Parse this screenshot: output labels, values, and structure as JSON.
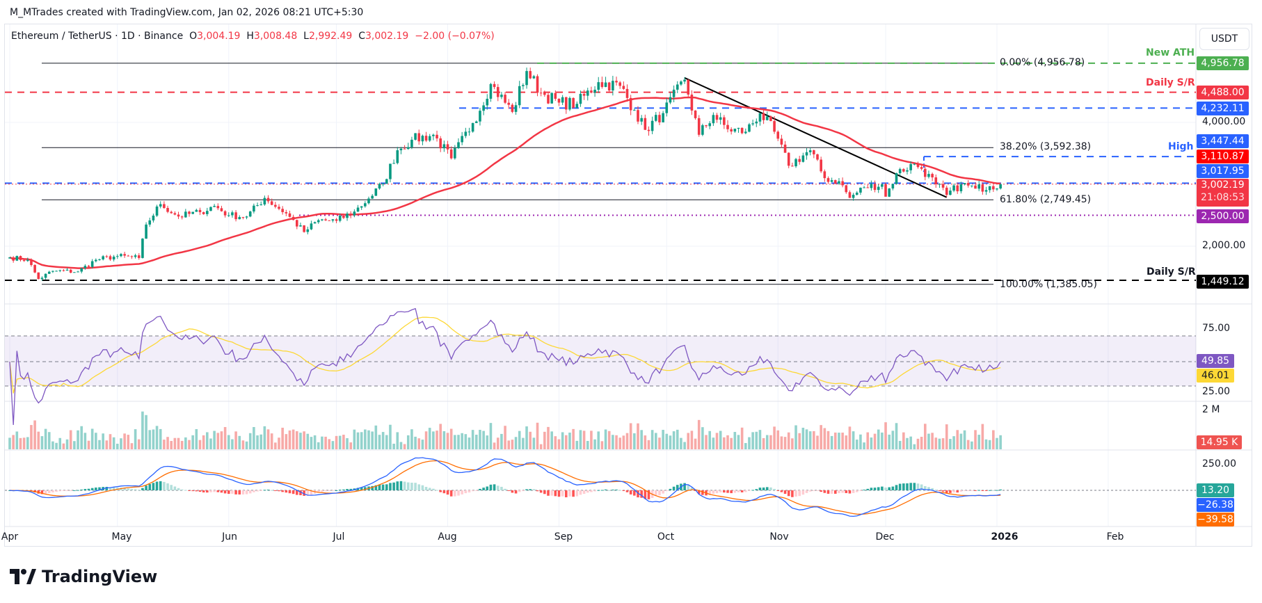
{
  "header": {
    "credit": "M_MTrades created with TradingView.com, Jan 02, 2026 08:21 UTC+5:30"
  },
  "legend": {
    "symbol": "Ethereum / TetherUS · 1D · Binance",
    "o_label": "O",
    "o": "3,004.19",
    "h_label": "H",
    "h": "3,008.48",
    "l_label": "L",
    "l": "2,992.49",
    "c_label": "C",
    "c": "3,002.19",
    "change": "−2.00 (−0.07%)"
  },
  "currency_button": "USDT",
  "annotations": {
    "new_ath": "New ATH",
    "daily_sr_top": "Daily S/R",
    "high": "High",
    "daily_sr_bottom": "Daily S/R",
    "fib_0": "0.00% (4,956.78)",
    "fib_382": "38.20% (3,592.38)",
    "fib_618": "61.80% (2,749.45)",
    "fib_100": "100.00% (1,385.05)"
  },
  "price_badges": {
    "ath": "4,956.78",
    "daily_sr": "4,488.00",
    "blue_upper": "4,232.11",
    "high": "3,447.44",
    "ma": "3,110.87",
    "blue_mid": "3,017.95",
    "last": "3,002.19",
    "countdown": "21:08:53",
    "purple": "2,500.00",
    "daily_sr_low": "1,449.12"
  },
  "price_axis": {
    "ticks": [
      "4,000.00",
      "2,000.00"
    ]
  },
  "rsi": {
    "ticks": [
      "75.00",
      "25.00"
    ],
    "value": "49.85",
    "ma_value": "46.01"
  },
  "volume": {
    "tick": "2 M",
    "value": "14.95 K"
  },
  "macd": {
    "tick": "250.00",
    "hist": "13.20",
    "macd": "−26.38",
    "signal": "−39.58"
  },
  "x_axis": {
    "labels": [
      "Apr",
      "May",
      "Jun",
      "Jul",
      "Aug",
      "Sep",
      "Oct",
      "Nov",
      "Dec",
      "2026",
      "Feb"
    ]
  },
  "footer": {
    "brand": "TradingView"
  },
  "colors": {
    "up": "#089981",
    "down": "#f23645",
    "ma": "#f23645",
    "ath": "#4caf50",
    "blue": "#2962ff",
    "purple": "#9c27b0",
    "rsi": "#7e57c2",
    "rsi_ma": "#fdd835",
    "macd": "#2962ff",
    "signal": "#ff6d00"
  },
  "chart_data": {
    "type": "candlestick",
    "title": "Ethereum / TetherUS · 1D · Binance",
    "y_scale": "linear",
    "ylim": [
      1250,
      5100
    ],
    "x_range": [
      "2025-04-01",
      "2026-02-28"
    ],
    "closes": [
      [
        "2025-04-01",
        1820
      ],
      [
        "2025-04-06",
        1780
      ],
      [
        "2025-04-09",
        1470
      ],
      [
        "2025-04-13",
        1600
      ],
      [
        "2025-04-20",
        1590
      ],
      [
        "2025-04-25",
        1780
      ],
      [
        "2025-05-01",
        1840
      ],
      [
        "2025-05-07",
        1810
      ],
      [
        "2025-05-09",
        2350
      ],
      [
        "2025-05-13",
        2680
      ],
      [
        "2025-05-18",
        2480
      ],
      [
        "2025-05-24",
        2550
      ],
      [
        "2025-05-28",
        2650
      ],
      [
        "2025-06-01",
        2500
      ],
      [
        "2025-06-06",
        2480
      ],
      [
        "2025-06-11",
        2780
      ],
      [
        "2025-06-17",
        2530
      ],
      [
        "2025-06-22",
        2230
      ],
      [
        "2025-06-26",
        2420
      ],
      [
        "2025-07-01",
        2410
      ],
      [
        "2025-07-06",
        2560
      ],
      [
        "2025-07-10",
        2770
      ],
      [
        "2025-07-14",
        3010
      ],
      [
        "2025-07-18",
        3550
      ],
      [
        "2025-07-22",
        3720
      ],
      [
        "2025-07-28",
        3800
      ],
      [
        "2025-08-02",
        3420
      ],
      [
        "2025-08-08",
        3990
      ],
      [
        "2025-08-13",
        4620
      ],
      [
        "2025-08-19",
        4170
      ],
      [
        "2025-08-23",
        4830
      ],
      [
        "2025-08-27",
        4480
      ],
      [
        "2025-09-01",
        4320
      ],
      [
        "2025-09-06",
        4300
      ],
      [
        "2025-09-12",
        4650
      ],
      [
        "2025-09-18",
        4590
      ],
      [
        "2025-09-22",
        4200
      ],
      [
        "2025-09-25",
        3880
      ],
      [
        "2025-09-30",
        4150
      ],
      [
        "2025-10-06",
        4690
      ],
      [
        "2025-10-10",
        3800
      ],
      [
        "2025-10-14",
        4120
      ],
      [
        "2025-10-18",
        3890
      ],
      [
        "2025-10-23",
        3850
      ],
      [
        "2025-10-27",
        4150
      ],
      [
        "2025-10-31",
        3850
      ],
      [
        "2025-11-04",
        3300
      ],
      [
        "2025-11-10",
        3550
      ],
      [
        "2025-11-14",
        3100
      ],
      [
        "2025-11-18",
        3050
      ],
      [
        "2025-11-21",
        2780
      ],
      [
        "2025-11-25",
        2950
      ],
      [
        "2025-11-30",
        3000
      ],
      [
        "2025-12-01",
        2800
      ],
      [
        "2025-12-04",
        3180
      ],
      [
        "2025-12-09",
        3330
      ],
      [
        "2025-12-11",
        3250
      ],
      [
        "2025-12-15",
        3000
      ],
      [
        "2025-12-18",
        2830
      ],
      [
        "2025-12-22",
        3000
      ],
      [
        "2025-12-26",
        2930
      ],
      [
        "2025-12-30",
        2970
      ],
      [
        "2026-01-02",
        3002
      ]
    ],
    "levels": [
      {
        "label": "New ATH",
        "value": 4956.78,
        "style": "dashed",
        "color": "#4caf50"
      },
      {
        "label": "Daily S/R",
        "value": 4488.0,
        "style": "dashed",
        "color": "#f23645"
      },
      {
        "value": 4232.11,
        "style": "dashed",
        "color": "#2962ff"
      },
      {
        "label": "High",
        "value": 3447.44,
        "style": "dashed",
        "color": "#2962ff"
      },
      {
        "value": 3017.95,
        "style": "dashed",
        "color": "#2962ff"
      },
      {
        "value": 2500.0,
        "style": "dotted",
        "color": "#9c27b0"
      },
      {
        "label": "Daily S/R",
        "value": 1449.12,
        "style": "dashed",
        "color": "#000000"
      }
    ],
    "fibonacci": [
      {
        "level": "0.00%",
        "value": 4956.78
      },
      {
        "level": "38.20%",
        "value": 3592.38
      },
      {
        "level": "61.80%",
        "value": 2749.45
      },
      {
        "level": "100.00%",
        "value": 1385.05
      }
    ],
    "trendline": [
      [
        "2025-10-06",
        4720
      ],
      [
        "2025-12-18",
        2790
      ]
    ],
    "indicators": {
      "ma_last": 3110.87,
      "rsi_last": 49.85,
      "rsi_ma_last": 46.01,
      "volume_last": "14.95 K",
      "macd_hist_last": 13.2,
      "macd_last": -26.38,
      "signal_last": -39.58
    }
  }
}
